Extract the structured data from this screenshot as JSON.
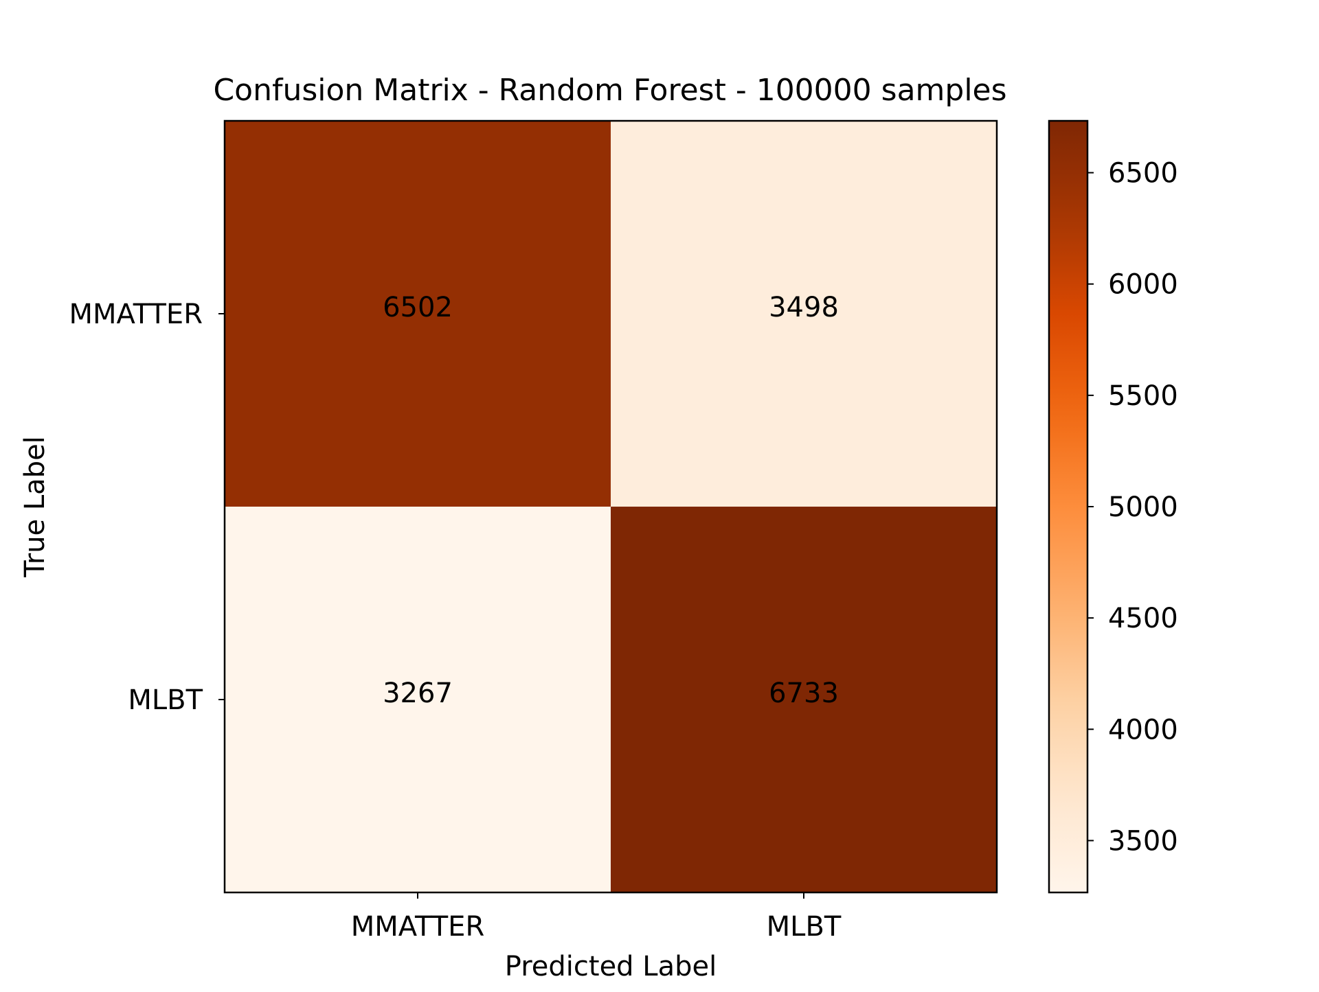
{
  "chart_data": {
    "type": "heatmap",
    "title": "Confusion Matrix - Random Forest - 100000 samples",
    "xlabel": "Predicted Label",
    "ylabel": "True Label",
    "x_categories": [
      "MMATTER",
      "MLBT"
    ],
    "y_categories": [
      "MMATTER",
      "MLBT"
    ],
    "values": [
      [
        6502,
        3498
      ],
      [
        3267,
        6733
      ]
    ],
    "colormap": "Oranges",
    "colorbar": {
      "range": [
        3267,
        6733
      ],
      "ticks": [
        3500,
        4000,
        4500,
        5000,
        5500,
        6000,
        6500
      ]
    },
    "grid": false,
    "legend": "none"
  }
}
